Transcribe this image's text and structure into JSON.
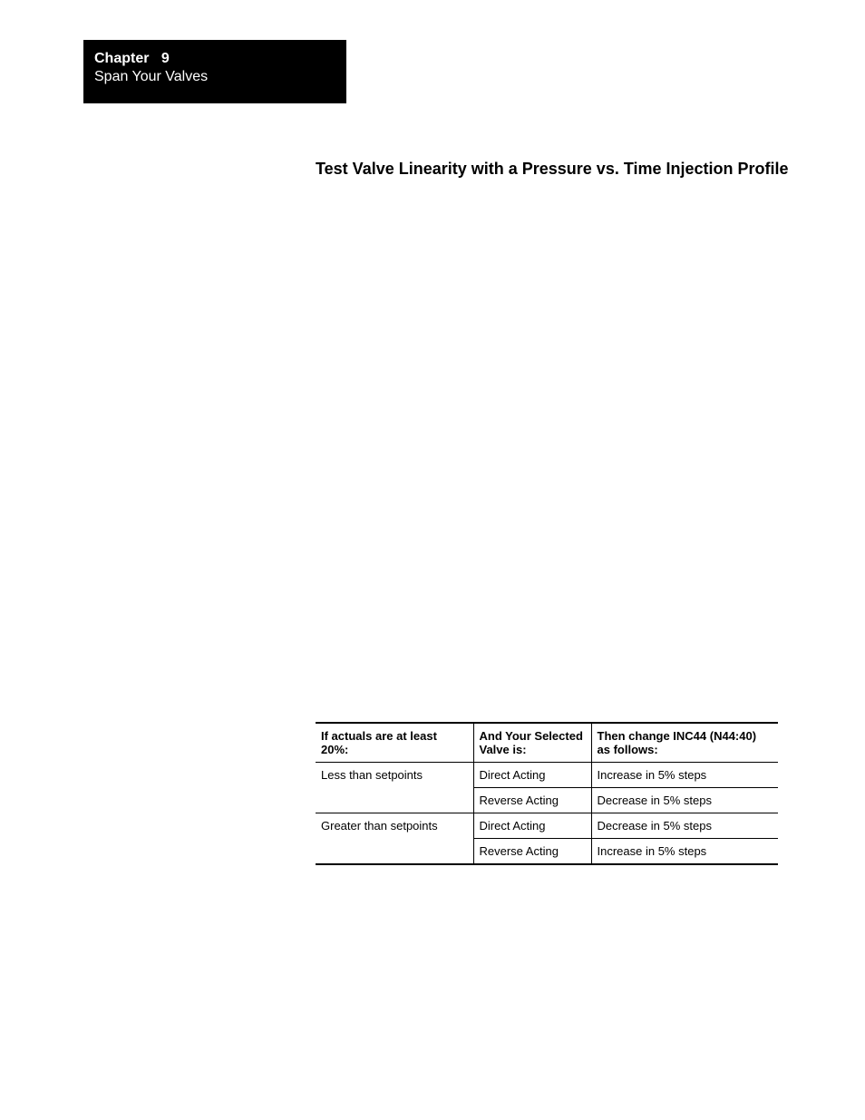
{
  "header": {
    "chapter_label": "Chapter",
    "chapter_number": "9",
    "chapter_title": "Span  Your Valves"
  },
  "section": {
    "heading": "Test Valve Linearity with a Pressure vs. Time Injection Profile"
  },
  "table": {
    "columns": [
      "If actuals are at least 20%:",
      "And Your Selected Valve is:",
      "Then change INC44 (N44:40) as follows:"
    ],
    "rows": [
      {
        "actuals": "Less than setpoints",
        "valve": "Direct Acting",
        "change": "Increase in 5% steps"
      },
      {
        "actuals": "",
        "valve": "Reverse Acting",
        "change": "Decrease in 5% steps"
      },
      {
        "actuals": "Greater than setpoints",
        "valve": "Direct Acting",
        "change": "Decrease in 5% steps"
      },
      {
        "actuals": "",
        "valve": "Reverse Acting",
        "change": "Increase in 5% steps"
      }
    ],
    "colors": {
      "border": "#000000",
      "text": "#000000"
    },
    "font_size": 13,
    "header_font_weight": "bold"
  }
}
